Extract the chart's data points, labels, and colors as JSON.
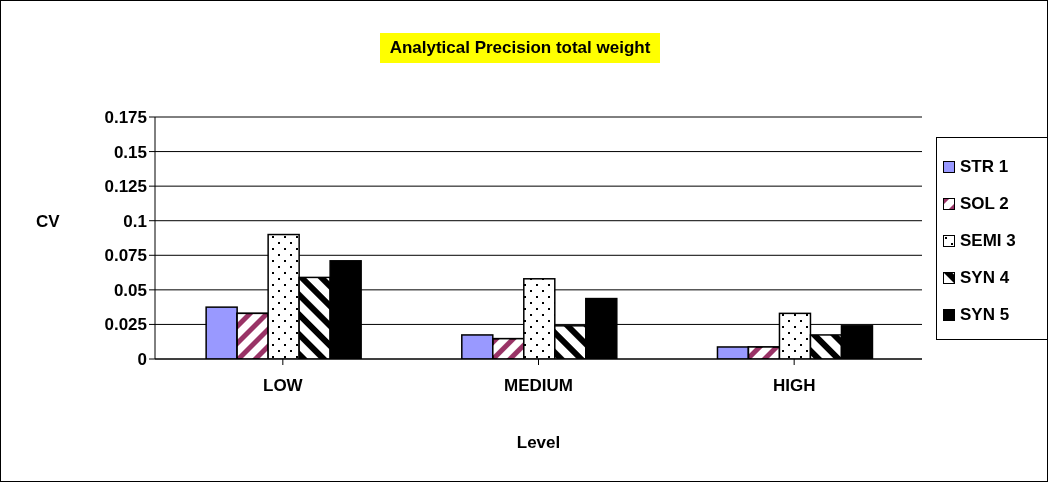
{
  "chart_data": {
    "type": "bar",
    "title": "Analytical Precision total weight",
    "xlabel": "Level",
    "ylabel": "CV",
    "categories": [
      "LOW",
      "MEDIUM",
      "HIGH"
    ],
    "series": [
      {
        "name": "STR 1",
        "color": "#9999ff",
        "values": [
          0.0375,
          0.0174,
          0.0087
        ]
      },
      {
        "name": "SOL 2",
        "color": "#993366",
        "values": [
          0.033,
          0.0147,
          0.0087
        ]
      },
      {
        "name": "SEMI 3",
        "color": "#000000",
        "values": [
          0.09,
          0.058,
          0.033
        ]
      },
      {
        "name": "SYN 4",
        "color": "#000000",
        "values": [
          0.059,
          0.024,
          0.0174
        ]
      },
      {
        "name": "SYN 5",
        "color": "#000000",
        "values": [
          0.071,
          0.0437,
          0.024
        ]
      }
    ],
    "ylim": [
      0,
      0.175
    ],
    "yticks": [
      0,
      0.025,
      0.05,
      0.075,
      0.1,
      0.125,
      0.15,
      0.175
    ],
    "grid": "y",
    "legend": "right"
  }
}
